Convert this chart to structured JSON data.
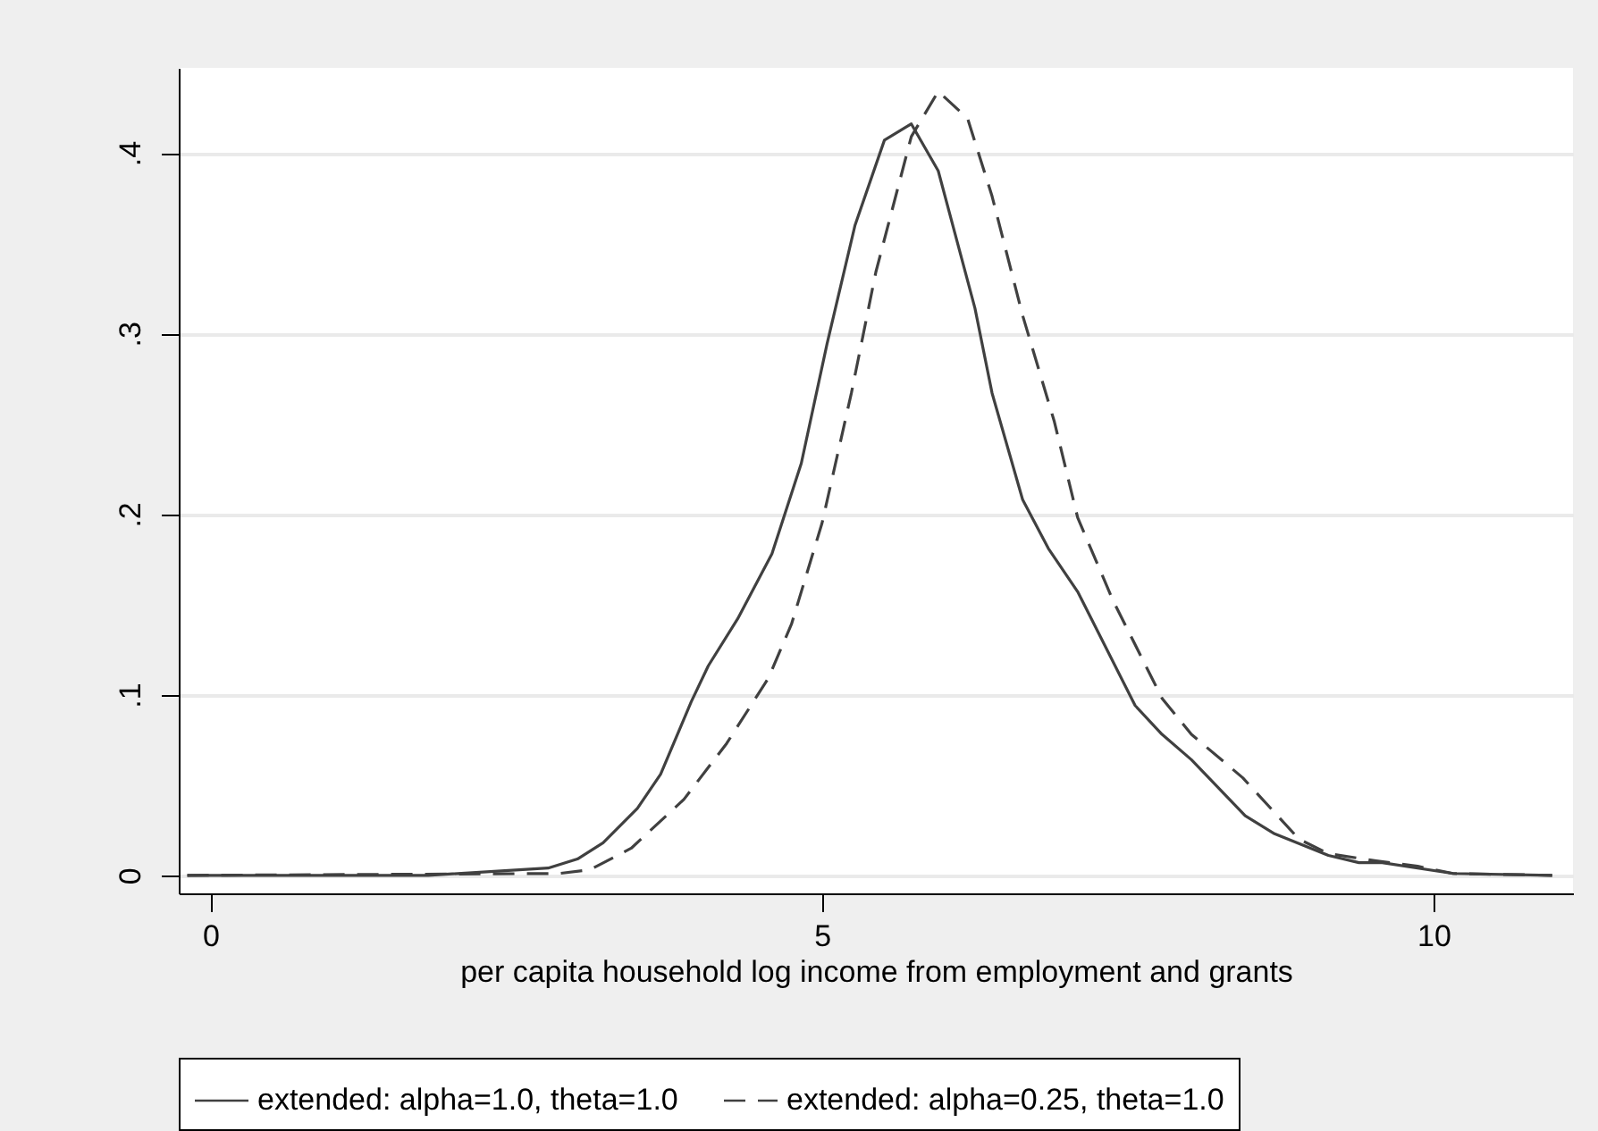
{
  "chart_data": {
    "type": "line",
    "xlabel": "per capita household log income from employment and grants",
    "xlim": [
      -0.26,
      11.14
    ],
    "xticks": [
      0,
      5,
      10
    ],
    "ylim": [
      -0.01,
      0.447
    ],
    "yticks": [
      {
        "value": 0,
        "label": "0"
      },
      {
        "value": 0.1,
        "label": ".1"
      },
      {
        "value": 0.2,
        "label": ".2"
      },
      {
        "value": 0.3,
        "label": ".3"
      },
      {
        "value": 0.4,
        "label": ".4"
      }
    ],
    "grid": "y",
    "legend": "bottom",
    "marker": "none",
    "series": [
      {
        "name": "extended: alpha=1.0, theta=1.0",
        "color": "#404040",
        "line_style": "solid",
        "x": [
          -0.19,
          1.78,
          2.76,
          3.0,
          3.21,
          3.49,
          3.68,
          3.93,
          4.07,
          4.31,
          4.59,
          4.83,
          5.04,
          5.27,
          5.51,
          5.73,
          5.95,
          6.25,
          6.39,
          6.64,
          6.85,
          7.09,
          7.56,
          7.78,
          8.02,
          8.46,
          8.7,
          9.14,
          9.39,
          9.58,
          10.16,
          10.97
        ],
        "values": [
          0,
          0,
          0.004,
          0.009,
          0.018,
          0.037,
          0.056,
          0.096,
          0.116,
          0.142,
          0.178,
          0.228,
          0.294,
          0.36,
          0.407,
          0.416,
          0.39,
          0.314,
          0.267,
          0.208,
          0.181,
          0.157,
          0.094,
          0.078,
          0.064,
          0.033,
          0.023,
          0.011,
          0.007,
          0.007,
          0.001,
          0
        ]
      },
      {
        "name": "extended: alpha=0.25, theta=1.0",
        "color": "#404040",
        "line_style": "dashed",
        "x": [
          -0.19,
          2.85,
          3.1,
          3.44,
          3.87,
          4.22,
          4.56,
          4.75,
          5.0,
          5.24,
          5.44,
          5.73,
          5.95,
          6.19,
          6.39,
          6.64,
          6.9,
          7.09,
          7.38,
          7.78,
          8.02,
          8.44,
          8.9,
          9.14,
          9.53,
          9.87,
          10.16,
          10.97
        ],
        "values": [
          0,
          0.001,
          0.003,
          0.015,
          0.042,
          0.073,
          0.109,
          0.139,
          0.195,
          0.267,
          0.334,
          0.409,
          0.434,
          0.419,
          0.376,
          0.31,
          0.251,
          0.198,
          0.152,
          0.098,
          0.078,
          0.054,
          0.02,
          0.012,
          0.008,
          0.005,
          0.001,
          0
        ]
      }
    ]
  }
}
